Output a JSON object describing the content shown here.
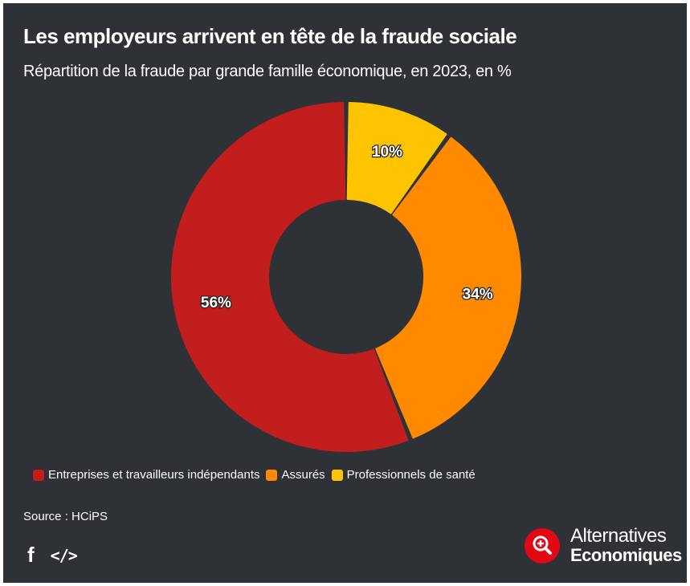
{
  "title": "Les employeurs arrivent en tête de la fraude sociale",
  "subtitle": "Répartition de la fraude par grande famille économique, en 2023, en %",
  "chart_data": {
    "type": "pie",
    "categories": [
      "Professionnels de santé",
      "Assurés",
      "Entreprises et travailleurs indépendants"
    ],
    "values": [
      10,
      34,
      56
    ],
    "labels": [
      "10%",
      "34%",
      "56%"
    ],
    "colors": [
      "#ffc400",
      "#ff8a00",
      "#c21e1e"
    ],
    "legend_placement": "bottom-left",
    "donut": true
  },
  "legend": {
    "items": [
      {
        "label": "Entreprises et travailleurs indépendants",
        "color": "#c21e1e"
      },
      {
        "label": "Assurés",
        "color": "#ff8a00"
      },
      {
        "label": "Professionnels de santé",
        "color": "#ffc400"
      }
    ]
  },
  "source": "Source : HCiPS",
  "share": {
    "facebook_icon": "facebook-icon",
    "embed_icon": "embed-code-icon"
  },
  "brand": {
    "line1": "Alternatives",
    "line2": "Economiques",
    "icon": "magnifier-plus-icon",
    "color": "#e30613"
  }
}
